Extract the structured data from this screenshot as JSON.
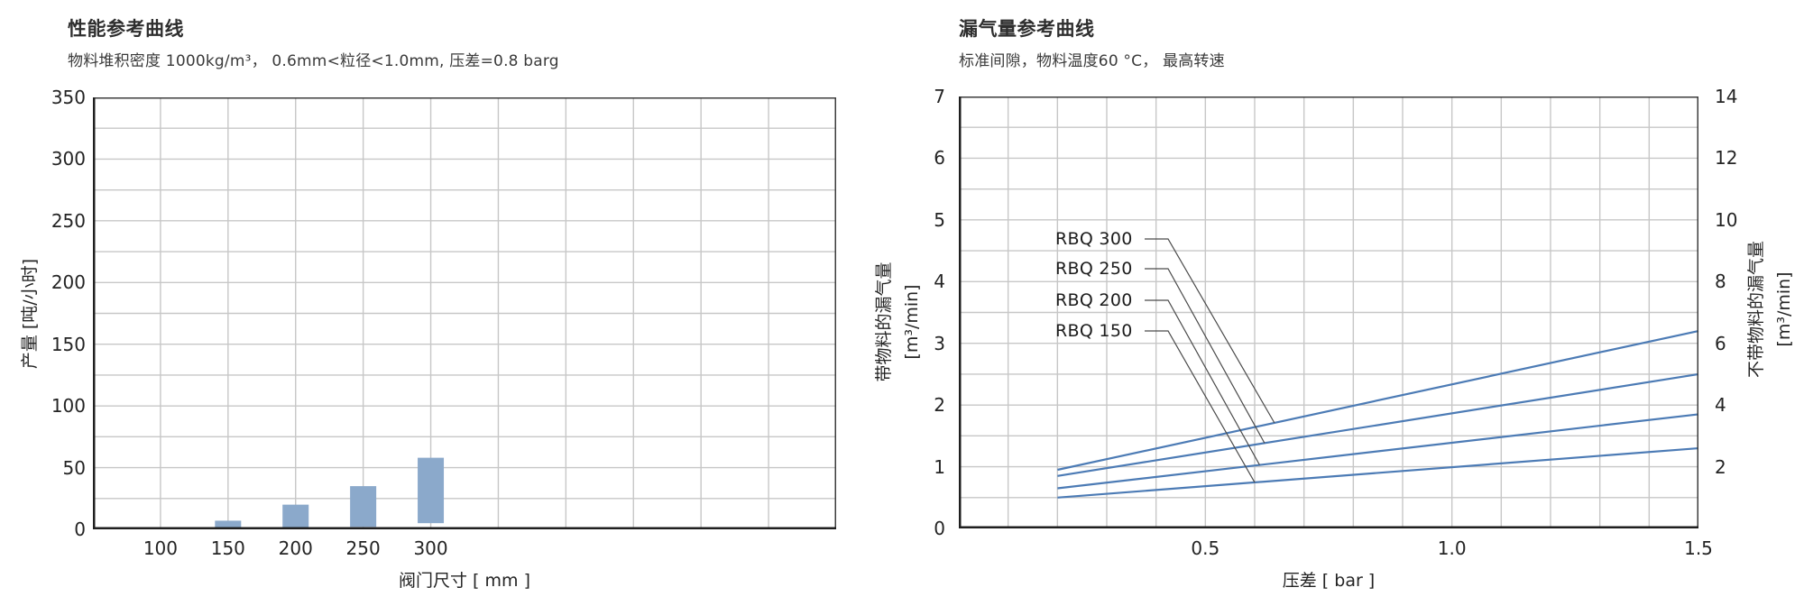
{
  "page": {
    "background": "#ffffff"
  },
  "chart_data": [
    {
      "type": "bar",
      "variant": "floating-range-bars",
      "title": "性能参考曲线",
      "subtitle": "物料堆积密度 1000kg/m³， 0.6mm<粒径<1.0mm, 压差=0.8 barg",
      "xlabel": "阀门尺寸 [ mm ]",
      "ylabel": "产量 [吨/小时]",
      "categories": [
        100,
        150,
        200,
        250,
        300
      ],
      "bar_low": [
        0,
        0,
        1,
        2,
        5
      ],
      "bar_high": [
        0,
        7,
        20,
        35,
        58
      ],
      "x_tick_labels": [
        "100",
        "150",
        "200",
        "250",
        "300"
      ],
      "xlim": [
        50,
        600
      ],
      "x_grid_step": 50,
      "ylim": [
        0,
        350
      ],
      "y_tick_step": 50,
      "y_grid_step": 25,
      "grid": true,
      "grid_color": "#c7c7c7",
      "bar_color": "#8BA9CB",
      "border_color": "#3c3c3c",
      "axis_color": "#1f1f1f"
    },
    {
      "type": "line",
      "title": "漏气量参考曲线",
      "subtitle": "标准间隙，物料温度60 °C， 最高转速",
      "xlabel": "压差 [ bar ]",
      "ylabel_left": "带物料的漏气量",
      "ylabel_left_unit": "[m³/min]",
      "ylabel_right": "不带物料的漏气量",
      "ylabel_right_unit": "[m³/min]",
      "xlim": [
        0,
        1.5
      ],
      "x_tick_values": [
        0.5,
        1.0,
        1.5
      ],
      "x_tick_labels": [
        "0.5",
        "1.0",
        "1.5"
      ],
      "x_grid_step": 0.1,
      "ylim_left": [
        0,
        7
      ],
      "y_tick_step_left": 1,
      "ylim_right": [
        0,
        14
      ],
      "y_tick_step_right": 2,
      "y_grid_step": 0.5,
      "grid": true,
      "grid_color": "#c7c7c7",
      "line_color": "#4C7BB5",
      "leader_color": "#4a4a4a",
      "border_color": "#3c3c3c",
      "axis_color": "#1f1f1f",
      "series": [
        {
          "name": "RBQ 300",
          "x": [
            0.2,
            1.5
          ],
          "y": [
            0.95,
            3.2
          ]
        },
        {
          "name": "RBQ 250",
          "x": [
            0.2,
            1.5
          ],
          "y": [
            0.85,
            2.5
          ]
        },
        {
          "name": "RBQ 200",
          "x": [
            0.2,
            1.5
          ],
          "y": [
            0.65,
            1.85
          ]
        },
        {
          "name": "RBQ 150",
          "x": [
            0.2,
            1.5
          ],
          "y": [
            0.5,
            1.3
          ]
        }
      ],
      "legend": {
        "position": "inside-upper-left",
        "labels": [
          "RBQ 300",
          "RBQ 250",
          "RBQ 200",
          "RBQ 150"
        ],
        "leader_attach_x": [
          0.64,
          0.62,
          0.61,
          0.6
        ]
      }
    }
  ]
}
